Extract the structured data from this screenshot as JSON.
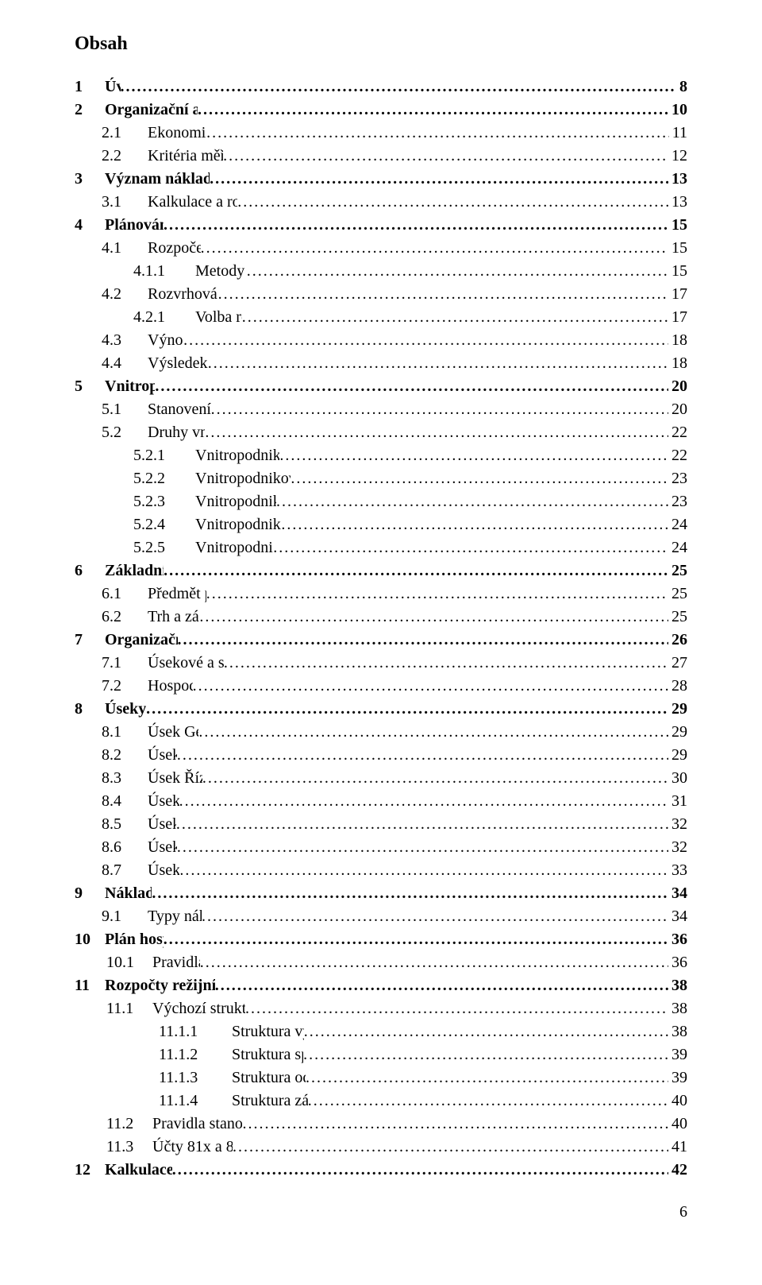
{
  "pageTitle": "Obsah",
  "footerPageNumber": "6",
  "dots": "......................................................................................................................................................................................................................................................................................................",
  "entries": [
    {
      "level": 0,
      "num": "1",
      "label": "Úvod",
      "page": "8",
      "bold": true
    },
    {
      "level": 0,
      "num": "2",
      "label": "Organizační a ekonomická struktura podniku",
      "page": "10",
      "bold": true
    },
    {
      "level": 1,
      "num": "2.1",
      "label": "Ekonomická struktura podniku",
      "page": "11",
      "bold": false
    },
    {
      "level": 1,
      "num": "2.2",
      "label": "Kritéria měření rozsahu činnosti střediska",
      "page": "12",
      "bold": false
    },
    {
      "level": 0,
      "num": "3",
      "label": "Význam nákladových středisek při kalkulaci nákladů",
      "page": "13",
      "bold": true
    },
    {
      "level": 1,
      "num": "3.1",
      "label": "Kalkulace a rozpočet zisku ve střediskovém členění",
      "page": "13",
      "bold": false
    },
    {
      "level": 0,
      "num": "4",
      "label": "Plánování a rozpočetnictví",
      "page": "15",
      "bold": true
    },
    {
      "level": 1,
      "num": "4.1",
      "label": "Rozpočet režijních nákladů",
      "page": "15",
      "bold": false
    },
    {
      "level": 2,
      "num": "4.1.1",
      "label": "Metody sestavování rozpočtů",
      "page": "15",
      "bold": false
    },
    {
      "level": 1,
      "num": "4.2",
      "label": "Rozvrhová základna režijních nákladů",
      "page": "17",
      "bold": false
    },
    {
      "level": 2,
      "num": "4.2.1",
      "label": "Volba rozvrhové základny",
      "page": "17",
      "bold": false
    },
    {
      "level": 1,
      "num": "4.3",
      "label": "Výnosy středisek",
      "page": "18",
      "bold": false
    },
    {
      "level": 1,
      "num": "4.4",
      "label": "Výsledek hospodaření střediska",
      "page": "18",
      "bold": false
    },
    {
      "level": 0,
      "num": "5",
      "label": "Vnitropodnikové ceny",
      "page": "20",
      "bold": true
    },
    {
      "level": 1,
      "num": "5.1",
      "label": "Stanovení vnitropodnikových cen",
      "page": "20",
      "bold": false
    },
    {
      "level": 1,
      "num": "5.2",
      "label": "Druhy vnitropodnikových cen",
      "page": "22",
      "bold": false
    },
    {
      "level": 2,
      "num": "5.2.1",
      "label": "Vnitropodniková cena s připočtením ziskové přirážky",
      "page": "22",
      "bold": false
    },
    {
      "level": 2,
      "num": "5.2.2",
      "label": "Vnitropodniková cena na úrovni plných střediskových nákladů",
      "page": "23",
      "bold": false
    },
    {
      "level": 2,
      "num": "5.2.3",
      "label": "Vnitropodniková cena na úrovni závislých nákladů",
      "page": "23",
      "bold": false
    },
    {
      "level": 2,
      "num": "5.2.4",
      "label": "Vnitropodniková cena na úrovni oportunitních nákladů",
      "page": "24",
      "bold": false
    },
    {
      "level": 2,
      "num": "5.2.5",
      "label": "Vnitropodnikové ceny dohodnuté mezi středisky",
      "page": "24",
      "bold": false
    },
    {
      "level": 0,
      "num": "6",
      "label": "Základní popis společnosti",
      "page": "25",
      "bold": true
    },
    {
      "level": 1,
      "num": "6.1",
      "label": "Předmět podnikání společnosti",
      "page": "25",
      "bold": false
    },
    {
      "level": 1,
      "num": "6.2",
      "label": "Trh a zákazníci organizace",
      "page": "25",
      "bold": false
    },
    {
      "level": 0,
      "num": "7",
      "label": "Organizační struktura společnosti",
      "page": "26",
      "bold": true
    },
    {
      "level": 1,
      "num": "7.1",
      "label": "Úsekové  a střediskové členění společnosti",
      "page": "27",
      "bold": false
    },
    {
      "level": 1,
      "num": "7.2",
      "label": "Hospodářská střediska",
      "page": "28",
      "bold": false
    },
    {
      "level": 0,
      "num": "8",
      "label": "Úseky společnosti",
      "page": "29",
      "bold": true
    },
    {
      "level": 1,
      "num": "8.1",
      "label": "Úsek Generálního ředitele",
      "page": "29",
      "bold": false
    },
    {
      "level": 1,
      "num": "8.2",
      "label": "Úsek Finance",
      "page": "29",
      "bold": false
    },
    {
      "level": 1,
      "num": "8.3",
      "label": "Úsek Řízení lidských zdrojů",
      "page": "30",
      "bold": false
    },
    {
      "level": 1,
      "num": "8.4",
      "label": "Úsek Technika",
      "page": "31",
      "bold": false
    },
    {
      "level": 1,
      "num": "8.5",
      "label": "Úsek Výroba",
      "page": "32",
      "bold": false
    },
    {
      "level": 1,
      "num": "8.6",
      "label": "Úsek Obchod",
      "page": "32",
      "bold": false
    },
    {
      "level": 1,
      "num": "8.7",
      "label": "Úsek Logistika",
      "page": "33",
      "bold": false
    },
    {
      "level": 0,
      "num": "9",
      "label": "Nákladová střediska",
      "page": "34",
      "bold": true
    },
    {
      "level": 1,
      "num": "9.1",
      "label": "Typy nákladových středisek",
      "page": "34",
      "bold": false
    },
    {
      "level": 0,
      "num": "10",
      "label": "Plán hospodaření podniku",
      "page": "36",
      "bold": true
    },
    {
      "level": 1,
      "num": "10.1",
      "label": "Pravidla sestavení plánu",
      "page": "36",
      "bold": false,
      "indentClass": "l1b"
    },
    {
      "level": 0,
      "num": "11",
      "label": "Rozpočty režijních nákladů a vnitropodnikových výkonů",
      "page": "38",
      "bold": true
    },
    {
      "level": 1,
      "num": "11.1",
      "label": "Výchozí struktura režijních nákladů pro výpočet sazeb",
      "page": "38",
      "bold": false,
      "indentClass": "l1b"
    },
    {
      "level": 3,
      "num": "11.1.1",
      "label": "Struktura výrobní režie a pravidla výpočtu sazeb",
      "page": "38",
      "bold": false
    },
    {
      "level": 3,
      "num": "11.1.2",
      "label": "Struktura správní režie a pravidla výpočtu sazeb",
      "page": "39",
      "bold": false
    },
    {
      "level": 3,
      "num": "11.1.3",
      "label": "Struktura odbytové režie a pravidla výpočtu sazeb",
      "page": "39",
      "bold": false
    },
    {
      "level": 3,
      "num": "11.1.4",
      "label": "Struktura zásobovací režie a pravidla výpočtu sazeb",
      "page": "40",
      "bold": false
    },
    {
      "level": 1,
      "num": "11.2",
      "label": "Pravidla stanovení sazeb vnitropodnikových výkonů",
      "page": "40",
      "bold": false,
      "indentClass": "l1b"
    },
    {
      "level": 1,
      "num": "11.3",
      "label": "Účty 81x a 86x vnitropodnikového účetnictví",
      "page": "41",
      "bold": false,
      "indentClass": "l1b"
    },
    {
      "level": 0,
      "num": "12",
      "label": "Kalkulace obchodního případu",
      "page": "42",
      "bold": true
    }
  ]
}
